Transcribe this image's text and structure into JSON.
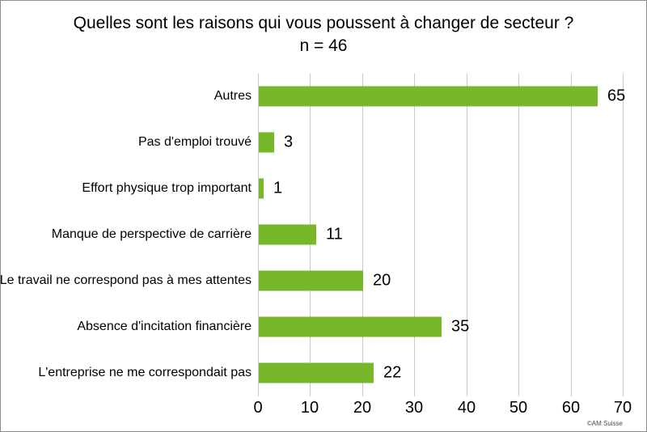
{
  "title": "Quelles sont les raisons qui vous poussent à changer de secteur ? n = 46",
  "copyright": "©AM Suisse",
  "chart_data": {
    "type": "bar",
    "orientation": "horizontal",
    "title": "Quelles sont les raisons qui vous poussent à changer de secteur ? n = 46",
    "categories": [
      "Autres",
      "Pas d'emploi trouvé",
      "Effort physique trop important",
      "Manque de perspective de carrière",
      "Le travail ne correspond pas à mes attentes",
      "Absence d'incitation financière",
      "L'entreprise ne me correspondait pas"
    ],
    "values": [
      65,
      3,
      1,
      11,
      20,
      35,
      22
    ],
    "value_labels": [
      65,
      3,
      1,
      11,
      20,
      35,
      22
    ],
    "xlabel": "",
    "ylabel": "",
    "xlim": [
      0,
      70
    ],
    "xticks": [
      0,
      10,
      20,
      30,
      40,
      50,
      60,
      70
    ],
    "grid": true,
    "legend": false,
    "bar_color": "#76B82A",
    "gridline_color": "#c9c9c9",
    "background_color": "#ffffff"
  }
}
